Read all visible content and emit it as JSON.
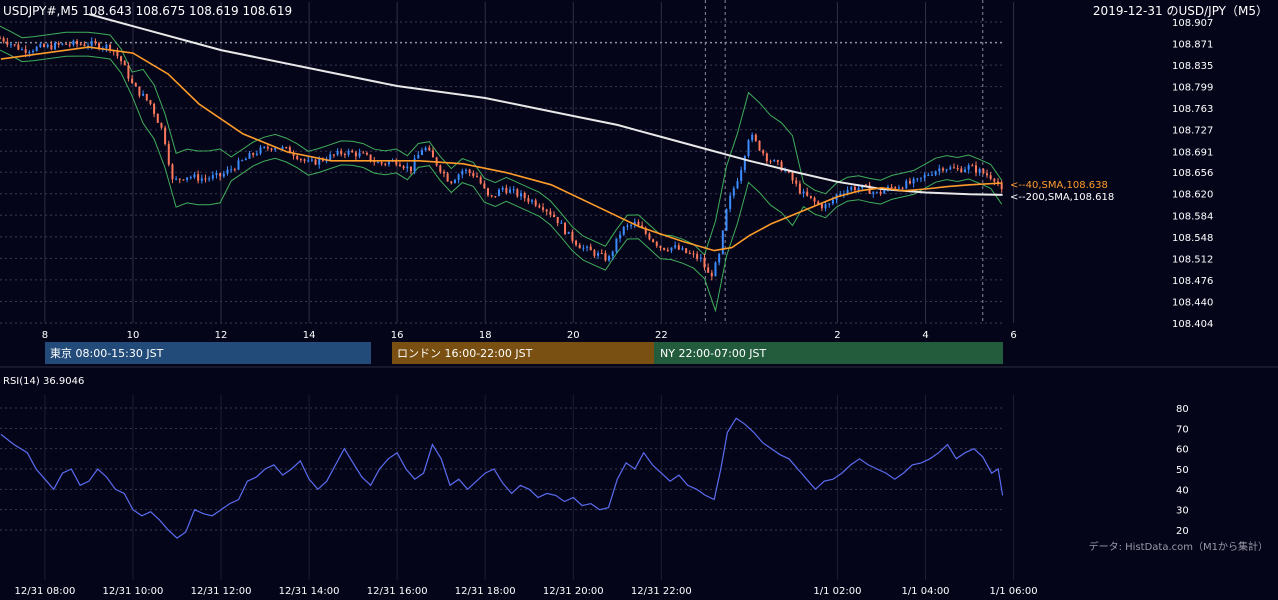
{
  "header": {
    "symbol_info": "USDJPY#,M5 108.643 108.675 108.619 108.619",
    "right_title": "2019-12-31 のUSD/JPY（M5）"
  },
  "sessions": [
    {
      "label": "東京 08:00-15:30 JST",
      "color": "#234b7a"
    },
    {
      "label": "ロンドン 16:00-22:00 JST",
      "color": "#7a5012"
    },
    {
      "label": "NY 22:00-07:00 JST",
      "color": "#225c3d"
    }
  ],
  "sma_labels": {
    "sma40": "<--40,SMA,108.638",
    "sma200": "<--200,SMA,108.618"
  },
  "rsi": {
    "label": "RSI(14) 36.9046"
  },
  "source": "データ: HistData.com（M1から集計）",
  "colors": {
    "background": "#05051a",
    "bull": "#3c8cff",
    "bear": "#ff7a5c",
    "sma40": "#ff9c2a",
    "sma200": "#e8e8e8",
    "bollinger": "#3fae5a",
    "rsi": "#5a6cf0",
    "grid": "#3a3a52"
  },
  "chart_data": [
    {
      "type": "candlestick",
      "title": "USDJPY#,M5",
      "y_ticks": [
        "108.907",
        "108.871",
        "108.835",
        "108.799",
        "108.763",
        "108.727",
        "108.691",
        "108.656",
        "108.620",
        "108.584",
        "108.548",
        "108.512",
        "108.476",
        "108.440",
        "108.404"
      ],
      "ylim": [
        108.404,
        108.907
      ],
      "x_ticks": [
        "8",
        "10",
        "12",
        "14",
        "16",
        "18",
        "20",
        "22",
        "2",
        "4",
        "6"
      ],
      "x_range_hours": [
        "2019-12-31 07:00",
        "2020-01-01 06:45"
      ],
      "last": {
        "open": 108.643,
        "high": 108.675,
        "low": 108.619,
        "close": 108.619
      },
      "sma40_last": 108.638,
      "sma200_last": 108.618,
      "price_path": [
        [
          7.0,
          108.88
        ],
        [
          7.5,
          108.86
        ],
        [
          8.0,
          108.865
        ],
        [
          8.5,
          108.87
        ],
        [
          9.0,
          108.87
        ],
        [
          9.5,
          108.865
        ],
        [
          9.75,
          108.84
        ],
        [
          10.0,
          108.8
        ],
        [
          10.4,
          108.77
        ],
        [
          10.7,
          108.72
        ],
        [
          10.9,
          108.64
        ],
        [
          11.2,
          108.65
        ],
        [
          11.6,
          108.645
        ],
        [
          12.0,
          108.65
        ],
        [
          12.4,
          108.67
        ],
        [
          12.8,
          108.69
        ],
        [
          13.2,
          108.7
        ],
        [
          13.6,
          108.69
        ],
        [
          14.0,
          108.67
        ],
        [
          14.4,
          108.68
        ],
        [
          14.8,
          108.69
        ],
        [
          15.2,
          108.685
        ],
        [
          15.6,
          108.67
        ],
        [
          16.0,
          108.675
        ],
        [
          16.3,
          108.66
        ],
        [
          16.6,
          108.7
        ],
        [
          16.9,
          108.67
        ],
        [
          17.2,
          108.64
        ],
        [
          17.5,
          108.66
        ],
        [
          17.8,
          108.65
        ],
        [
          18.1,
          108.61
        ],
        [
          18.4,
          108.63
        ],
        [
          18.7,
          108.62
        ],
        [
          19.0,
          108.61
        ],
        [
          19.3,
          108.6
        ],
        [
          19.6,
          108.58
        ],
        [
          19.9,
          108.55
        ],
        [
          20.2,
          108.53
        ],
        [
          20.5,
          108.52
        ],
        [
          20.8,
          108.51
        ],
        [
          21.1,
          108.56
        ],
        [
          21.4,
          108.57
        ],
        [
          21.7,
          108.55
        ],
        [
          22.0,
          108.53
        ],
        [
          22.3,
          108.53
        ],
        [
          22.6,
          108.52
        ],
        [
          22.9,
          108.51
        ],
        [
          23.1,
          108.48
        ],
        [
          23.3,
          108.51
        ],
        [
          23.5,
          108.6
        ],
        [
          23.65,
          108.63
        ],
        [
          23.8,
          108.66
        ],
        [
          24.0,
          108.72
        ],
        [
          24.2,
          108.7
        ],
        [
          24.4,
          108.68
        ],
        [
          24.6,
          108.67
        ],
        [
          24.8,
          108.66
        ],
        [
          25.0,
          108.64
        ],
        [
          25.2,
          108.62
        ],
        [
          25.4,
          108.61
        ],
        [
          25.6,
          108.6
        ],
        [
          25.8,
          108.6
        ],
        [
          26.0,
          108.62
        ],
        [
          26.3,
          108.63
        ],
        [
          26.6,
          108.63
        ],
        [
          26.9,
          108.62
        ],
        [
          27.2,
          108.63
        ],
        [
          27.5,
          108.635
        ],
        [
          27.8,
          108.64
        ],
        [
          28.1,
          108.655
        ],
        [
          28.4,
          108.665
        ],
        [
          28.7,
          108.66
        ],
        [
          29.0,
          108.665
        ],
        [
          29.3,
          108.655
        ],
        [
          29.6,
          108.645
        ],
        [
          29.75,
          108.619
        ]
      ],
      "series": [
        {
          "name": "40,SMA",
          "points": [
            [
              7.0,
              108.845
            ],
            [
              8.0,
              108.855
            ],
            [
              9.0,
              108.865
            ],
            [
              10.0,
              108.855
            ],
            [
              10.8,
              108.82
            ],
            [
              11.5,
              108.77
            ],
            [
              12.5,
              108.72
            ],
            [
              13.5,
              108.69
            ],
            [
              14.5,
              108.675
            ],
            [
              15.5,
              108.675
            ],
            [
              16.5,
              108.675
            ],
            [
              17.5,
              108.67
            ],
            [
              18.5,
              108.655
            ],
            [
              19.5,
              108.635
            ],
            [
              20.5,
              108.6
            ],
            [
              21.5,
              108.565
            ],
            [
              22.5,
              108.54
            ],
            [
              23.2,
              108.525
            ],
            [
              23.6,
              108.53
            ],
            [
              24.0,
              108.55
            ],
            [
              24.5,
              108.57
            ],
            [
              25.0,
              108.585
            ],
            [
              25.5,
              108.6
            ],
            [
              26.0,
              108.615
            ],
            [
              26.5,
              108.625
            ],
            [
              27.0,
              108.63
            ],
            [
              27.5,
              108.625
            ],
            [
              28.0,
              108.628
            ],
            [
              28.5,
              108.632
            ],
            [
              29.0,
              108.635
            ],
            [
              29.75,
              108.638
            ]
          ]
        },
        {
          "name": "200,SMA",
          "points": [
            [
              9.0,
              108.92
            ],
            [
              10.0,
              108.9
            ],
            [
              12.0,
              108.86
            ],
            [
              14.0,
              108.83
            ],
            [
              16.0,
              108.8
            ],
            [
              17.0,
              108.79
            ],
            [
              18.0,
              108.78
            ],
            [
              19.0,
              108.765
            ],
            [
              20.0,
              108.75
            ],
            [
              21.0,
              108.735
            ],
            [
              22.0,
              108.715
            ],
            [
              23.0,
              108.695
            ],
            [
              24.0,
              108.675
            ],
            [
              25.0,
              108.657
            ],
            [
              26.0,
              108.64
            ],
            [
              27.0,
              108.628
            ],
            [
              28.0,
              108.622
            ],
            [
              29.0,
              108.619
            ],
            [
              29.75,
              108.618
            ]
          ]
        }
      ]
    },
    {
      "type": "line",
      "title": "RSI(14) 36.9046",
      "y_ticks": [
        "80",
        "70",
        "60",
        "50",
        "40",
        "30",
        "20"
      ],
      "ylim": [
        12,
        82
      ],
      "x_ticks": [
        "12/31 08:00",
        "12/31 10:00",
        "12/31 12:00",
        "12/31 14:00",
        "12/31 16:00",
        "12/31 18:00",
        "12/31 20:00",
        "12/31 22:00",
        "1/1 02:00",
        "1/1 04:00",
        "1/1 06:00"
      ],
      "series": [
        {
          "name": "RSI(14)",
          "points": [
            [
              7.0,
              67
            ],
            [
              7.3,
              62
            ],
            [
              7.6,
              58
            ],
            [
              7.8,
              50
            ],
            [
              8.0,
              45
            ],
            [
              8.2,
              40
            ],
            [
              8.4,
              48
            ],
            [
              8.6,
              50
            ],
            [
              8.8,
              42
            ],
            [
              9.0,
              44
            ],
            [
              9.2,
              50
            ],
            [
              9.4,
              46
            ],
            [
              9.6,
              40
            ],
            [
              9.8,
              38
            ],
            [
              10.0,
              30
            ],
            [
              10.2,
              27
            ],
            [
              10.4,
              29
            ],
            [
              10.6,
              25
            ],
            [
              10.8,
              20
            ],
            [
              11.0,
              16
            ],
            [
              11.2,
              19
            ],
            [
              11.4,
              30
            ],
            [
              11.6,
              28
            ],
            [
              11.8,
              27
            ],
            [
              12.0,
              30
            ],
            [
              12.2,
              33
            ],
            [
              12.4,
              35
            ],
            [
              12.6,
              44
            ],
            [
              12.8,
              46
            ],
            [
              13.0,
              50
            ],
            [
              13.2,
              52
            ],
            [
              13.4,
              47
            ],
            [
              13.6,
              50
            ],
            [
              13.8,
              54
            ],
            [
              14.0,
              45
            ],
            [
              14.2,
              40
            ],
            [
              14.4,
              44
            ],
            [
              14.6,
              52
            ],
            [
              14.8,
              60
            ],
            [
              15.0,
              53
            ],
            [
              15.2,
              46
            ],
            [
              15.4,
              42
            ],
            [
              15.6,
              50
            ],
            [
              15.8,
              55
            ],
            [
              16.0,
              58
            ],
            [
              16.2,
              50
            ],
            [
              16.4,
              45
            ],
            [
              16.6,
              48
            ],
            [
              16.8,
              62
            ],
            [
              17.0,
              55
            ],
            [
              17.2,
              42
            ],
            [
              17.4,
              45
            ],
            [
              17.6,
              40
            ],
            [
              17.8,
              44
            ],
            [
              18.0,
              48
            ],
            [
              18.2,
              50
            ],
            [
              18.4,
              43
            ],
            [
              18.6,
              38
            ],
            [
              18.8,
              42
            ],
            [
              19.0,
              40
            ],
            [
              19.2,
              36
            ],
            [
              19.4,
              38
            ],
            [
              19.6,
              37
            ],
            [
              19.8,
              34
            ],
            [
              20.0,
              36
            ],
            [
              20.2,
              32
            ],
            [
              20.4,
              33
            ],
            [
              20.6,
              30
            ],
            [
              20.8,
              31
            ],
            [
              21.0,
              45
            ],
            [
              21.2,
              53
            ],
            [
              21.4,
              50
            ],
            [
              21.6,
              58
            ],
            [
              21.8,
              52
            ],
            [
              22.0,
              48
            ],
            [
              22.2,
              44
            ],
            [
              22.4,
              47
            ],
            [
              22.6,
              42
            ],
            [
              22.8,
              40
            ],
            [
              23.0,
              37
            ],
            [
              23.2,
              35
            ],
            [
              23.35,
              50
            ],
            [
              23.5,
              68
            ],
            [
              23.7,
              75
            ],
            [
              23.9,
              72
            ],
            [
              24.1,
              68
            ],
            [
              24.3,
              63
            ],
            [
              24.5,
              60
            ],
            [
              24.7,
              57
            ],
            [
              24.9,
              55
            ],
            [
              25.1,
              50
            ],
            [
              25.3,
              45
            ],
            [
              25.5,
              40
            ],
            [
              25.7,
              44
            ],
            [
              25.9,
              45
            ],
            [
              26.1,
              48
            ],
            [
              26.3,
              52
            ],
            [
              26.5,
              55
            ],
            [
              26.7,
              52
            ],
            [
              26.9,
              50
            ],
            [
              27.1,
              48
            ],
            [
              27.3,
              45
            ],
            [
              27.5,
              48
            ],
            [
              27.7,
              52
            ],
            [
              27.9,
              53
            ],
            [
              28.1,
              55
            ],
            [
              28.3,
              58
            ],
            [
              28.5,
              62
            ],
            [
              28.7,
              55
            ],
            [
              28.9,
              58
            ],
            [
              29.1,
              60
            ],
            [
              29.3,
              56
            ],
            [
              29.5,
              48
            ],
            [
              29.65,
              50
            ],
            [
              29.75,
              37
            ]
          ]
        }
      ]
    }
  ]
}
